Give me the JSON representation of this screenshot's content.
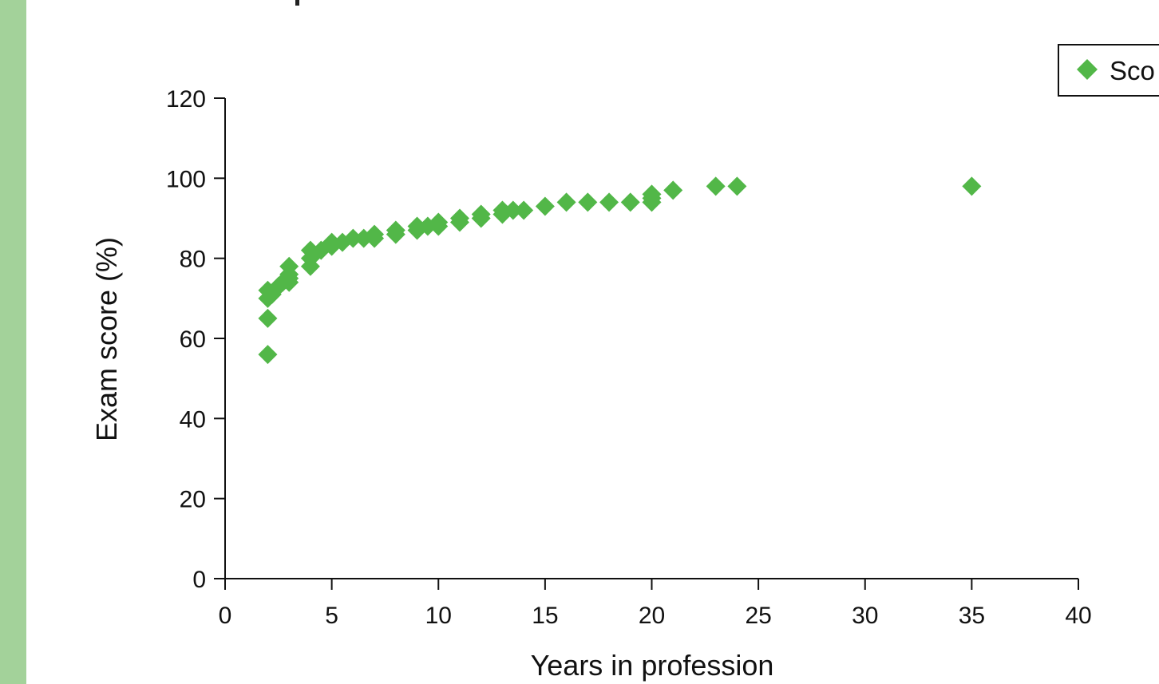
{
  "chart_data": {
    "type": "scatter",
    "xlabel": "Years in profession",
    "ylabel": "Exam score (%)",
    "xlim": [
      0,
      40
    ],
    "ylim": [
      0,
      120
    ],
    "x_ticks": [
      "0",
      "5",
      "10",
      "15",
      "20",
      "25",
      "30",
      "35",
      "40"
    ],
    "y_ticks": [
      "0",
      "20",
      "40",
      "60",
      "80",
      "100",
      "120"
    ],
    "grid": false,
    "legend_position": "top-right",
    "series": [
      {
        "name": "Sco",
        "color": "#52b748",
        "marker": "diamond",
        "points": [
          [
            2,
            56
          ],
          [
            2,
            65
          ],
          [
            2,
            70
          ],
          [
            2,
            72
          ],
          [
            2.2,
            71
          ],
          [
            2.5,
            73
          ],
          [
            2.7,
            74
          ],
          [
            3,
            74
          ],
          [
            3,
            76
          ],
          [
            3,
            78
          ],
          [
            3,
            75
          ],
          [
            4,
            78
          ],
          [
            4,
            80
          ],
          [
            4,
            82
          ],
          [
            4.5,
            82
          ],
          [
            5,
            83
          ],
          [
            5,
            84
          ],
          [
            5.5,
            84
          ],
          [
            6,
            85
          ],
          [
            6.5,
            85
          ],
          [
            7,
            85
          ],
          [
            7,
            86
          ],
          [
            8,
            86
          ],
          [
            8,
            87
          ],
          [
            9,
            87
          ],
          [
            9,
            88
          ],
          [
            9.5,
            88
          ],
          [
            10,
            88
          ],
          [
            10,
            89
          ],
          [
            11,
            89
          ],
          [
            11,
            90
          ],
          [
            12,
            90
          ],
          [
            12,
            91
          ],
          [
            13,
            91
          ],
          [
            13,
            92
          ],
          [
            13.5,
            92
          ],
          [
            14,
            92
          ],
          [
            15,
            93
          ],
          [
            16,
            94
          ],
          [
            17,
            94
          ],
          [
            18,
            94
          ],
          [
            19,
            94
          ],
          [
            20,
            94
          ],
          [
            20,
            95
          ],
          [
            20,
            96
          ],
          [
            21,
            97
          ],
          [
            23,
            98
          ],
          [
            24,
            98
          ],
          [
            35,
            98
          ]
        ]
      }
    ]
  }
}
